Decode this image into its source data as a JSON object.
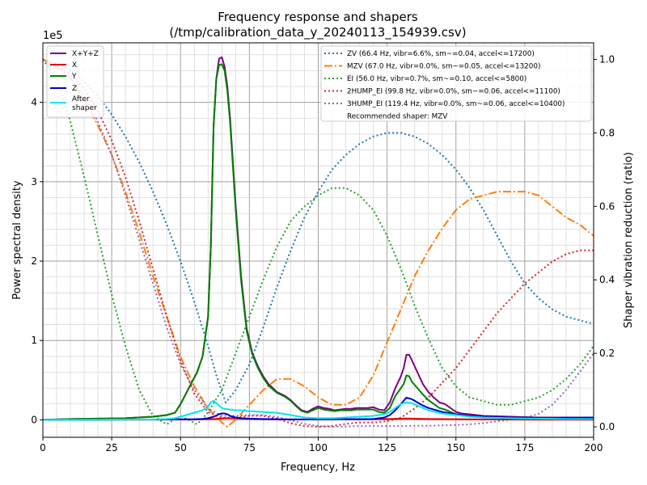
{
  "chart_data": {
    "type": "line",
    "title": "Frequency response and shapers",
    "subtitle": "(/tmp/calibration_data_y_20240113_154939.csv)",
    "xlabel": "Frequency, Hz",
    "ylabel": "Power spectral density",
    "y2label": "Shaper vibration reduction (ratio)",
    "y_multiplier_label": "1e5",
    "xlim": [
      0,
      200
    ],
    "ylim": [
      -0.22,
      4.75
    ],
    "y2lim": [
      -0.0285,
      1.045
    ],
    "x_ticks": [
      0,
      25,
      50,
      75,
      100,
      125,
      150,
      175,
      200
    ],
    "y_ticks": [
      0,
      1,
      2,
      3,
      4
    ],
    "y2_ticks": [
      0.0,
      0.2,
      0.4,
      0.6,
      0.8,
      1.0
    ],
    "x_tick_labels": [
      "0",
      "25",
      "50",
      "75",
      "100",
      "125",
      "150",
      "175",
      "200"
    ],
    "y_tick_labels": [
      "0",
      "1",
      "2",
      "3",
      "4"
    ],
    "y2_tick_labels": [
      "0.0",
      "0.2",
      "0.4",
      "0.6",
      "0.8",
      "1.0"
    ],
    "grid": true,
    "legend_left": {
      "placement": "top-left",
      "entries": [
        "X+Y+Z",
        "X",
        "Y",
        "Z",
        "After\nshaper"
      ]
    },
    "legend_right": {
      "placement": "top-right",
      "entries": [
        "ZV (66.4 Hz, vibr=6.6%, sm~=0.04, accel<=17200)",
        "MZV (67.0 Hz, vibr=0.0%, sm~=0.05, accel<=13200)",
        "EI (56.0 Hz, vibr=0.7%, sm~=0.10, accel<=5800)",
        "2HUMP_EI (99.8 Hz, vibr=0.0%, sm~=0.06, accel<=11100)",
        "3HUMP_EI (119.4 Hz, vibr=0.0%, sm~=0.06, accel<=10400)"
      ],
      "note": "Recommended shaper: MZV"
    },
    "psd_series": [
      {
        "name": "X+Y+Z",
        "color": "#800080",
        "width": 2,
        "dash": "",
        "x": [
          0,
          5,
          10,
          20,
          30,
          40,
          45,
          48,
          50,
          53,
          56,
          58,
          60,
          61,
          62,
          63,
          64,
          65,
          66,
          67,
          68,
          70,
          72,
          74,
          76,
          78,
          80,
          82,
          85,
          88,
          90,
          92,
          94,
          96,
          98,
          100,
          102,
          104,
          106,
          108,
          110,
          112,
          114,
          116,
          118,
          120,
          122,
          124,
          126,
          128,
          130,
          131,
          132,
          133,
          134,
          136,
          138,
          140,
          142,
          144,
          146,
          148,
          150,
          152,
          155,
          160,
          165,
          170,
          180,
          190,
          195,
          198,
          200
        ],
        "y": [
          0,
          0.005,
          0.01,
          0.015,
          0.02,
          0.04,
          0.06,
          0.09,
          0.2,
          0.4,
          0.6,
          0.8,
          1.3,
          2.2,
          3.7,
          4.3,
          4.55,
          4.57,
          4.45,
          4.2,
          3.8,
          2.7,
          1.8,
          1.15,
          0.85,
          0.68,
          0.55,
          0.45,
          0.35,
          0.3,
          0.25,
          0.18,
          0.12,
          0.1,
          0.14,
          0.17,
          0.15,
          0.14,
          0.12,
          0.13,
          0.14,
          0.14,
          0.15,
          0.15,
          0.15,
          0.16,
          0.13,
          0.12,
          0.22,
          0.4,
          0.55,
          0.65,
          0.82,
          0.82,
          0.75,
          0.6,
          0.45,
          0.35,
          0.28,
          0.22,
          0.2,
          0.15,
          0.1,
          0.08,
          0.07,
          0.05,
          0.045,
          0.04,
          0.03,
          0.03,
          0.03,
          0.03,
          0.03
        ]
      },
      {
        "name": "X",
        "color": "#e00000",
        "width": 2,
        "dash": "",
        "x": [
          0,
          20,
          40,
          55,
          60,
          63,
          65,
          66,
          68,
          70,
          75,
          80,
          90,
          100,
          110,
          120,
          125,
          130,
          132,
          135,
          140,
          150,
          160,
          180,
          200
        ],
        "y": [
          0,
          0.002,
          0.003,
          0.005,
          0.008,
          0.012,
          0.018,
          0.02,
          0.02,
          0.018,
          0.012,
          0.008,
          0.005,
          0.005,
          0.006,
          0.008,
          0.01,
          0.014,
          0.016,
          0.014,
          0.01,
          0.008,
          0.005,
          0.003,
          0.002
        ]
      },
      {
        "name": "Y",
        "color": "#008000",
        "width": 2,
        "dash": "",
        "x": [
          0,
          5,
          10,
          20,
          30,
          40,
          45,
          48,
          50,
          53,
          56,
          58,
          60,
          61,
          62,
          63,
          64,
          65,
          66,
          67,
          68,
          70,
          72,
          74,
          76,
          78,
          80,
          82,
          85,
          88,
          90,
          92,
          94,
          96,
          98,
          100,
          102,
          104,
          106,
          108,
          110,
          112,
          114,
          116,
          118,
          120,
          122,
          124,
          126,
          128,
          130,
          131,
          132,
          133,
          134,
          136,
          138,
          140,
          142,
          144,
          146,
          148,
          150,
          152,
          155,
          160,
          165,
          170,
          180,
          190,
          195,
          198,
          200
        ],
        "y": [
          0,
          0.005,
          0.01,
          0.015,
          0.02,
          0.04,
          0.06,
          0.09,
          0.2,
          0.4,
          0.6,
          0.8,
          1.3,
          2.2,
          3.7,
          4.3,
          4.47,
          4.48,
          4.4,
          4.15,
          3.75,
          2.65,
          1.75,
          1.12,
          0.83,
          0.66,
          0.53,
          0.43,
          0.34,
          0.29,
          0.24,
          0.17,
          0.11,
          0.09,
          0.12,
          0.15,
          0.13,
          0.12,
          0.11,
          0.12,
          0.12,
          0.12,
          0.13,
          0.13,
          0.13,
          0.13,
          0.1,
          0.09,
          0.15,
          0.3,
          0.4,
          0.45,
          0.56,
          0.55,
          0.48,
          0.4,
          0.32,
          0.25,
          0.2,
          0.15,
          0.13,
          0.1,
          0.07,
          0.06,
          0.05,
          0.04,
          0.035,
          0.03,
          0.025,
          0.02,
          0.025,
          0.025,
          0.02
        ]
      },
      {
        "name": "Z",
        "color": "#0000cc",
        "width": 2,
        "dash": "",
        "x": [
          0,
          20,
          40,
          50,
          55,
          58,
          60,
          62,
          64,
          65,
          66,
          67,
          68,
          70,
          72,
          75,
          80,
          90,
          100,
          110,
          120,
          124,
          126,
          128,
          130,
          132,
          134,
          136,
          138,
          140,
          145,
          150,
          155,
          160,
          170,
          180,
          185,
          190,
          195,
          198,
          200
        ],
        "y": [
          0,
          0.002,
          0.004,
          0.006,
          0.008,
          0.012,
          0.02,
          0.04,
          0.07,
          0.08,
          0.08,
          0.07,
          0.05,
          0.03,
          0.02,
          0.015,
          0.01,
          0.005,
          0.006,
          0.008,
          0.01,
          0.03,
          0.06,
          0.12,
          0.2,
          0.28,
          0.26,
          0.22,
          0.18,
          0.15,
          0.1,
          0.07,
          0.05,
          0.04,
          0.03,
          0.025,
          0.02,
          0.03,
          0.025,
          0.03,
          0.03
        ]
      },
      {
        "name": "After\nshaper",
        "color": "#00e5ee",
        "width": 2,
        "dash": "",
        "x": [
          0,
          20,
          40,
          45,
          48,
          50,
          52,
          54,
          56,
          58,
          60,
          61,
          62,
          63,
          64,
          65,
          66,
          68,
          70,
          72,
          75,
          80,
          85,
          90,
          95,
          100,
          105,
          110,
          115,
          120,
          124,
          126,
          128,
          130,
          132,
          134,
          136,
          138,
          140,
          145,
          150,
          155,
          160,
          170,
          180,
          190,
          200
        ],
        "y": [
          0,
          0.002,
          0.005,
          0.01,
          0.02,
          0.04,
          0.06,
          0.08,
          0.1,
          0.12,
          0.17,
          0.22,
          0.24,
          0.21,
          0.18,
          0.15,
          0.14,
          0.13,
          0.12,
          0.12,
          0.11,
          0.1,
          0.09,
          0.06,
          0.03,
          0.02,
          0.02,
          0.03,
          0.04,
          0.05,
          0.07,
          0.1,
          0.15,
          0.2,
          0.22,
          0.21,
          0.18,
          0.15,
          0.12,
          0.08,
          0.06,
          0.04,
          0.03,
          0.02,
          0.015,
          0.01,
          0.01
        ]
      }
    ],
    "shaper_series": [
      {
        "name": "ZV (66.4 Hz, vibr=6.6%, sm~=0.04, accel<=17200)",
        "color": "#1f77b4",
        "dash": "2 3",
        "width": 2,
        "x": [
          0,
          5,
          10,
          15,
          20,
          25,
          30,
          35,
          40,
          45,
          50,
          55,
          60,
          63,
          66.4,
          70,
          75,
          80,
          85,
          90,
          95,
          100,
          105,
          110,
          115,
          120,
          125,
          130,
          135,
          140,
          145,
          150,
          155,
          160,
          165,
          170,
          175,
          180,
          185,
          190,
          195,
          200
        ],
        "y": [
          1.0,
          0.99,
          0.97,
          0.94,
          0.9,
          0.85,
          0.79,
          0.72,
          0.64,
          0.55,
          0.45,
          0.34,
          0.22,
          0.14,
          0.066,
          0.1,
          0.17,
          0.27,
          0.38,
          0.48,
          0.57,
          0.64,
          0.7,
          0.74,
          0.77,
          0.79,
          0.8,
          0.8,
          0.79,
          0.77,
          0.74,
          0.7,
          0.65,
          0.59,
          0.52,
          0.45,
          0.39,
          0.35,
          0.32,
          0.3,
          0.29,
          0.28
        ]
      },
      {
        "name": "MZV (67.0 Hz, vibr=0.0%, sm~=0.05, accel<=13200)",
        "color": "#ff7f0e",
        "dash": "10 3 2 3",
        "width": 2,
        "x": [
          0,
          5,
          10,
          15,
          20,
          25,
          30,
          35,
          40,
          45,
          50,
          55,
          60,
          65,
          67,
          70,
          75,
          80,
          85,
          90,
          95,
          100,
          105,
          110,
          115,
          120,
          125,
          130,
          135,
          140,
          145,
          150,
          155,
          160,
          165,
          170,
          175,
          180,
          185,
          190,
          195,
          200
        ],
        "y": [
          1.0,
          0.98,
          0.95,
          0.89,
          0.82,
          0.74,
          0.64,
          0.53,
          0.41,
          0.3,
          0.19,
          0.11,
          0.05,
          0.012,
          0.0,
          0.02,
          0.06,
          0.1,
          0.13,
          0.13,
          0.11,
          0.08,
          0.06,
          0.06,
          0.08,
          0.14,
          0.23,
          0.32,
          0.41,
          0.48,
          0.54,
          0.59,
          0.62,
          0.63,
          0.64,
          0.64,
          0.64,
          0.63,
          0.6,
          0.57,
          0.55,
          0.52
        ]
      },
      {
        "name": "EI (56.0 Hz, vibr=0.7%, sm~=0.10, accel<=5800)",
        "color": "#2ca02c",
        "dash": "2 3",
        "width": 2,
        "x": [
          0,
          5,
          10,
          15,
          20,
          25,
          30,
          35,
          40,
          45,
          50,
          56,
          60,
          65,
          70,
          75,
          80,
          85,
          90,
          95,
          100,
          105,
          110,
          115,
          120,
          125,
          130,
          135,
          140,
          145,
          150,
          155,
          160,
          165,
          170,
          175,
          180,
          185,
          190,
          195,
          200
        ],
        "y": [
          1.0,
          0.95,
          0.83,
          0.68,
          0.52,
          0.36,
          0.22,
          0.1,
          0.03,
          0.007,
          0.03,
          0.007,
          0.04,
          0.1,
          0.2,
          0.3,
          0.4,
          0.49,
          0.56,
          0.6,
          0.63,
          0.65,
          0.65,
          0.63,
          0.59,
          0.52,
          0.43,
          0.33,
          0.24,
          0.16,
          0.11,
          0.08,
          0.07,
          0.06,
          0.06,
          0.07,
          0.08,
          0.1,
          0.13,
          0.17,
          0.22
        ]
      },
      {
        "name": "2HUMP_EI (99.8 Hz, vibr=0.0%, sm~=0.06, accel<=11100)",
        "color": "#d62728",
        "dash": "2 3",
        "width": 2,
        "x": [
          0,
          5,
          10,
          15,
          20,
          25,
          30,
          35,
          40,
          45,
          50,
          55,
          60,
          65,
          70,
          75,
          80,
          85,
          90,
          95,
          100,
          105,
          110,
          115,
          120,
          125,
          130,
          135,
          140,
          145,
          150,
          155,
          160,
          165,
          170,
          175,
          180,
          185,
          190,
          195,
          200
        ],
        "y": [
          1.0,
          0.985,
          0.96,
          0.92,
          0.86,
          0.78,
          0.68,
          0.56,
          0.43,
          0.3,
          0.18,
          0.09,
          0.04,
          0.025,
          0.025,
          0.03,
          0.03,
          0.022,
          0.01,
          0.002,
          0.0,
          0.002,
          0.008,
          0.012,
          0.012,
          0.015,
          0.025,
          0.05,
          0.08,
          0.12,
          0.16,
          0.21,
          0.26,
          0.31,
          0.35,
          0.39,
          0.42,
          0.45,
          0.47,
          0.48,
          0.48
        ]
      },
      {
        "name": "3HUMP_EI (119.4 Hz, vibr=0.0%, sm~=0.06, accel<=10400)",
        "color": "#9467bd",
        "dash": "2 3",
        "width": 2,
        "x": [
          0,
          5,
          10,
          15,
          20,
          25,
          30,
          35,
          40,
          45,
          50,
          55,
          60,
          65,
          70,
          75,
          80,
          85,
          90,
          95,
          100,
          105,
          110,
          115,
          120,
          125,
          130,
          135,
          140,
          145,
          150,
          155,
          160,
          165,
          170,
          175,
          180,
          185,
          190,
          195,
          200
        ],
        "y": [
          1.0,
          0.98,
          0.95,
          0.9,
          0.83,
          0.74,
          0.63,
          0.51,
          0.39,
          0.27,
          0.17,
          0.1,
          0.05,
          0.03,
          0.03,
          0.032,
          0.032,
          0.027,
          0.018,
          0.008,
          0.002,
          0.0,
          0.001,
          0.002,
          0.002,
          0.002,
          0.002,
          0.003,
          0.003,
          0.004,
          0.005,
          0.007,
          0.01,
          0.015,
          0.02,
          0.025,
          0.035,
          0.06,
          0.1,
          0.15,
          0.2
        ]
      }
    ]
  }
}
